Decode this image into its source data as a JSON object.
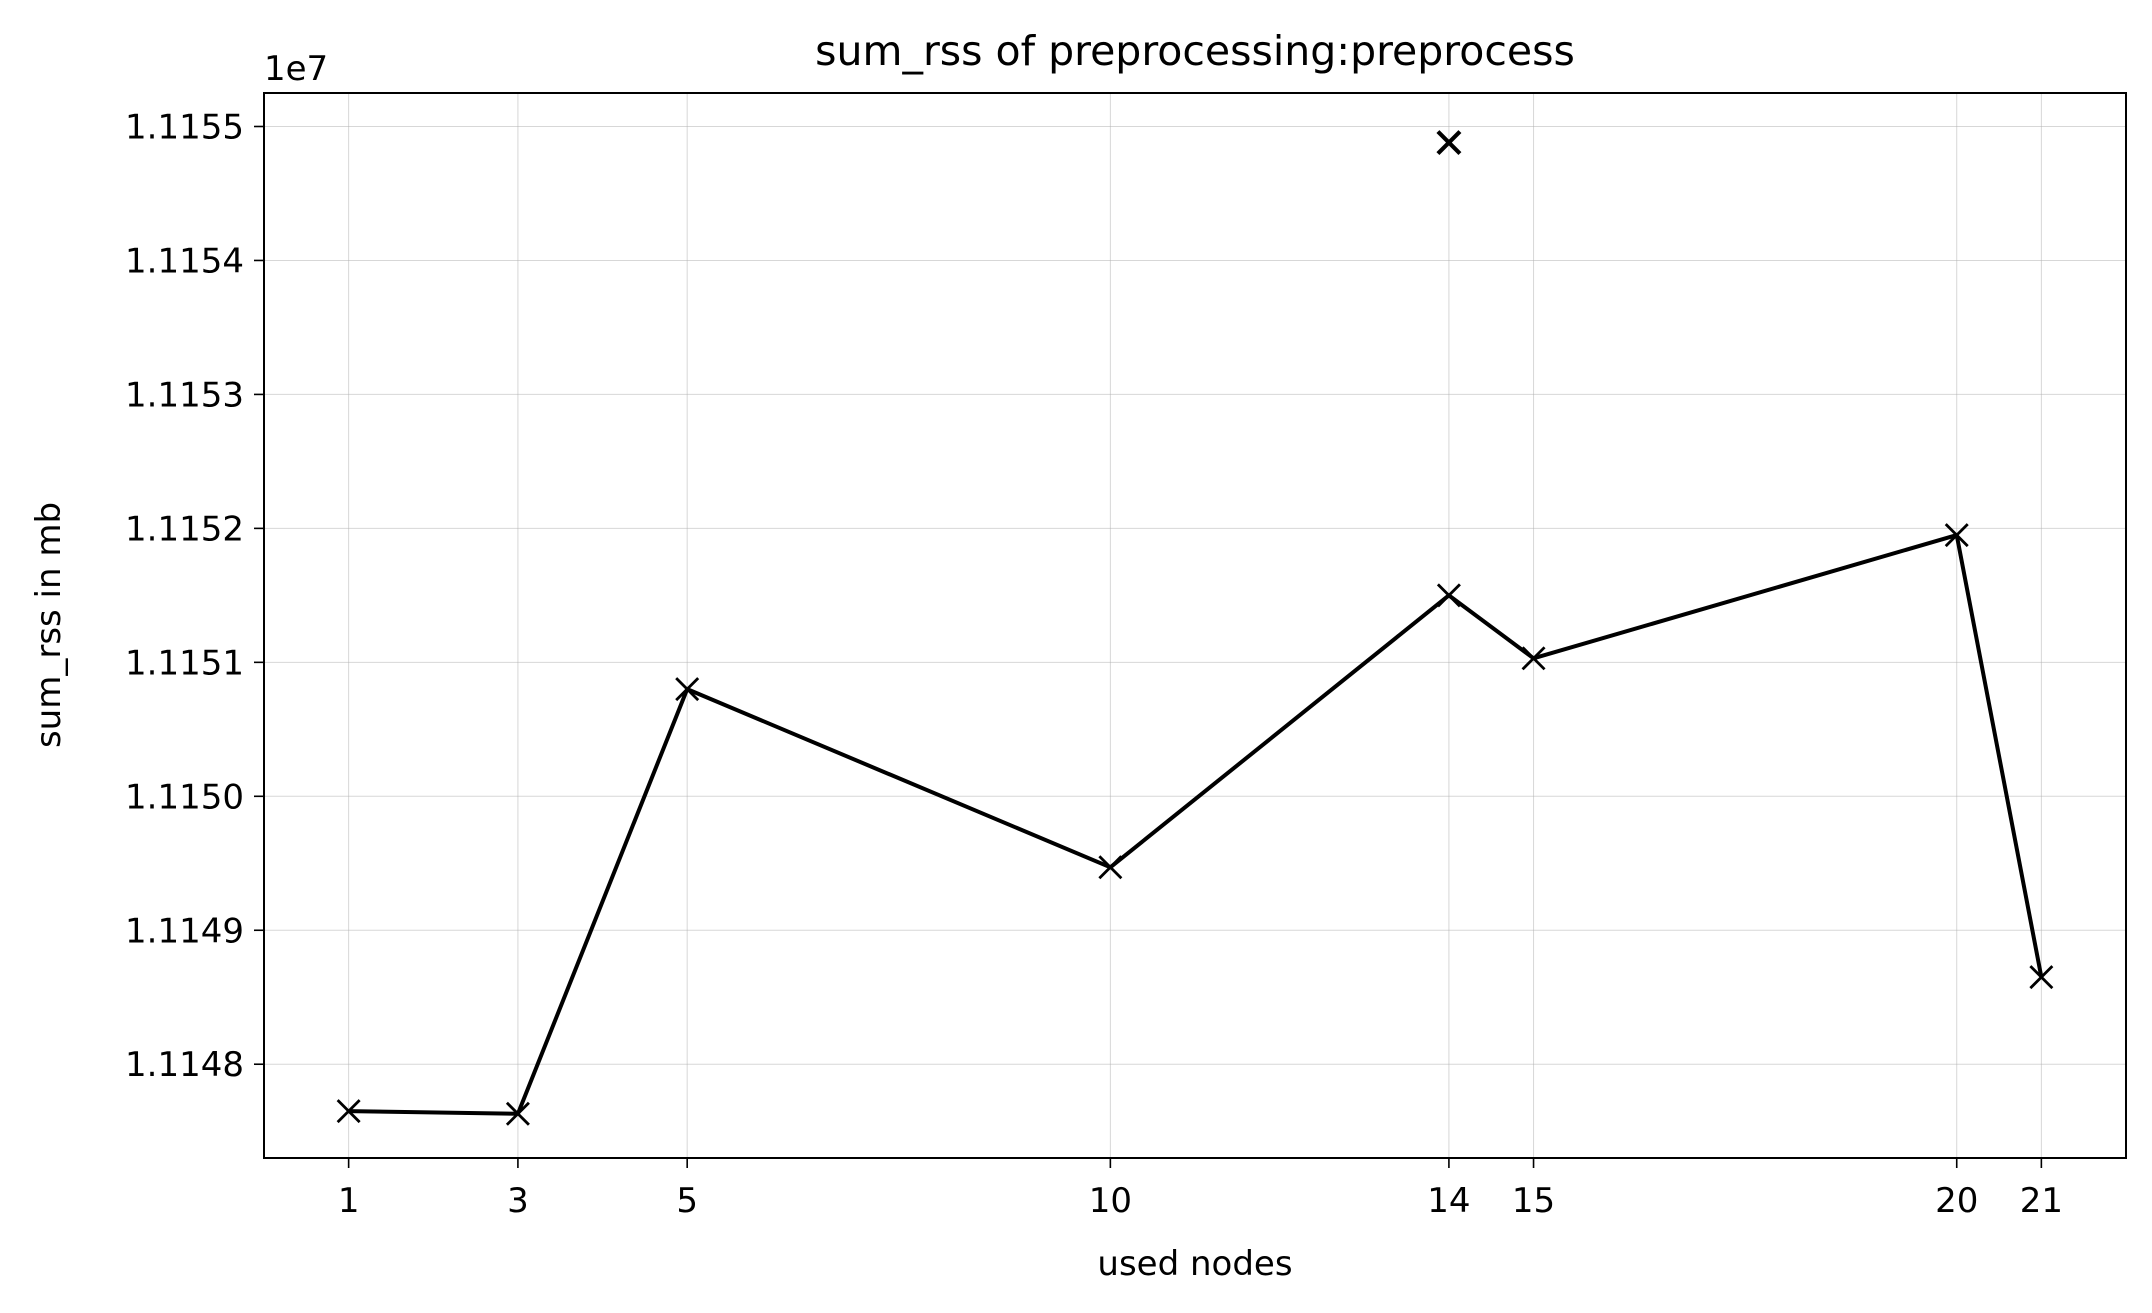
{
  "chart_data": {
    "type": "line",
    "title": "sum_rss of preprocessing:preprocess",
    "xlabel": "used nodes",
    "ylabel": "sum_rss in mb",
    "y_offset_label": "1e7",
    "y_scale_factor": 10000000,
    "xlim": [
      0.0,
      22.0
    ],
    "ylim": [
      11147.3,
      11155.25
    ],
    "x_ticks": [
      1,
      3,
      5,
      10,
      14,
      15,
      20,
      21
    ],
    "x_tick_labels": [
      "1",
      "3",
      "5",
      "10",
      "14",
      "15",
      "20",
      "21"
    ],
    "y_ticks": [
      1.1148,
      1.1149,
      1.115,
      1.1151,
      1.1152,
      1.1153,
      1.1154,
      1.1155
    ],
    "y_tick_labels": [
      "1.1148",
      "1.1149",
      "1.1150",
      "1.1151",
      "1.1152",
      "1.1153",
      "1.1154",
      "1.1155"
    ],
    "grid": true,
    "series": [
      {
        "color": "#000000",
        "marker": "x",
        "points": [
          {
            "x": 1,
            "y": 11147.65
          },
          {
            "x": 3,
            "y": 11147.63
          },
          {
            "x": 5,
            "y": 11150.8
          },
          {
            "x": 10,
            "y": 11149.47
          },
          {
            "x": 14,
            "y": 11151.5
          },
          {
            "x": 15,
            "y": 11151.03
          },
          {
            "x": 20,
            "y": 11151.95
          },
          {
            "x": 21,
            "y": 11148.65
          }
        ]
      }
    ],
    "outliers": [
      {
        "x": 14,
        "y": 11154.88,
        "color": "#000000",
        "marker": "x"
      }
    ]
  }
}
